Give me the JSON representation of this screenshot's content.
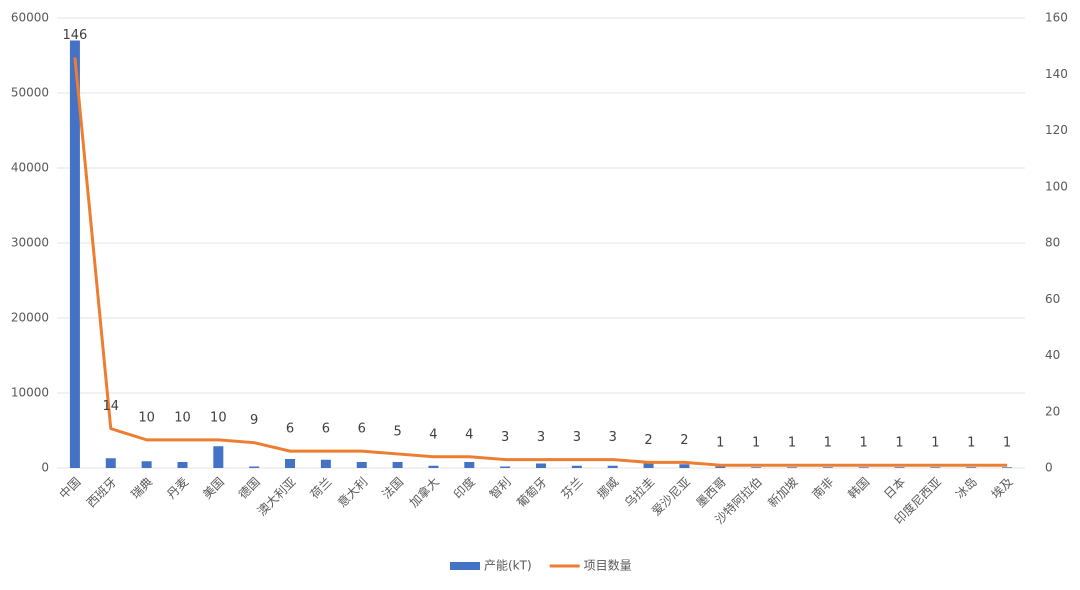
{
  "chart_data": {
    "type": "bar-line",
    "categories": [
      "中国",
      "西班牙",
      "瑞典",
      "丹麦",
      "美国",
      "德国",
      "澳大利亚",
      "荷兰",
      "意大利",
      "法国",
      "加拿大",
      "印度",
      "智利",
      "葡萄牙",
      "芬兰",
      "挪威",
      "乌拉圭",
      "爱沙尼亚",
      "墨西哥",
      "沙特阿拉伯",
      "新加坡",
      "南非",
      "韩国",
      "日本",
      "印度尼西亚",
      "冰岛",
      "埃及"
    ],
    "series": [
      {
        "name": "产能(kT)",
        "type": "bar",
        "color": "#4472c4",
        "values": [
          57000,
          1300,
          900,
          800,
          2900,
          200,
          1200,
          1100,
          800,
          800,
          300,
          800,
          200,
          600,
          300,
          300,
          600,
          500,
          200,
          100,
          100,
          100,
          100,
          100,
          100,
          100,
          100
        ]
      },
      {
        "name": "项目数量",
        "type": "line",
        "axis": "y2",
        "color": "#ed7d31",
        "values": [
          146,
          14,
          10,
          10,
          10,
          9,
          6,
          6,
          6,
          5,
          4,
          4,
          3,
          3,
          3,
          3,
          2,
          2,
          1,
          1,
          1,
          1,
          1,
          1,
          1,
          1,
          1
        ]
      }
    ],
    "ylim": [
      0,
      60000
    ],
    "yticks": [
      0,
      10000,
      20000,
      30000,
      40000,
      50000,
      60000
    ],
    "y2lim": [
      0,
      160
    ],
    "y2ticks": [
      0,
      20,
      40,
      60,
      80,
      100,
      120,
      140,
      160
    ],
    "grid": true,
    "legend": "bottom"
  }
}
